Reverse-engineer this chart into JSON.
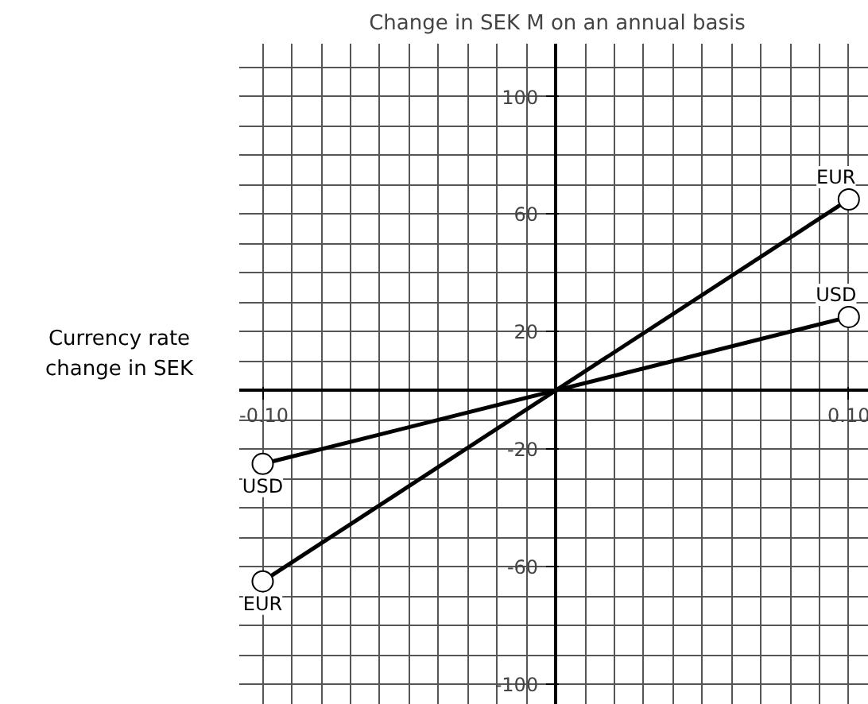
{
  "chart_data": {
    "type": "line",
    "title": "Change in SEK M on an annual basis",
    "ylabel": "Currency rate change in SEK",
    "x": [
      -0.1,
      0.1
    ],
    "series": [
      {
        "name": "EUR",
        "color": "#000000",
        "values": [
          -65,
          65
        ]
      },
      {
        "name": "USD",
        "color": "#000000",
        "values": [
          -25,
          25
        ]
      }
    ],
    "xlim": [
      -0.108,
      0.109
    ],
    "ylim": [
      -107,
      118
    ],
    "xticks": [
      {
        "value": -0.1,
        "label": "-0.10"
      },
      {
        "value": 0.1,
        "label": "0.10"
      }
    ],
    "yticks": [
      -100,
      -60,
      -20,
      20,
      60,
      100
    ],
    "grid": true,
    "marker": "circle",
    "line_style": "solid"
  }
}
